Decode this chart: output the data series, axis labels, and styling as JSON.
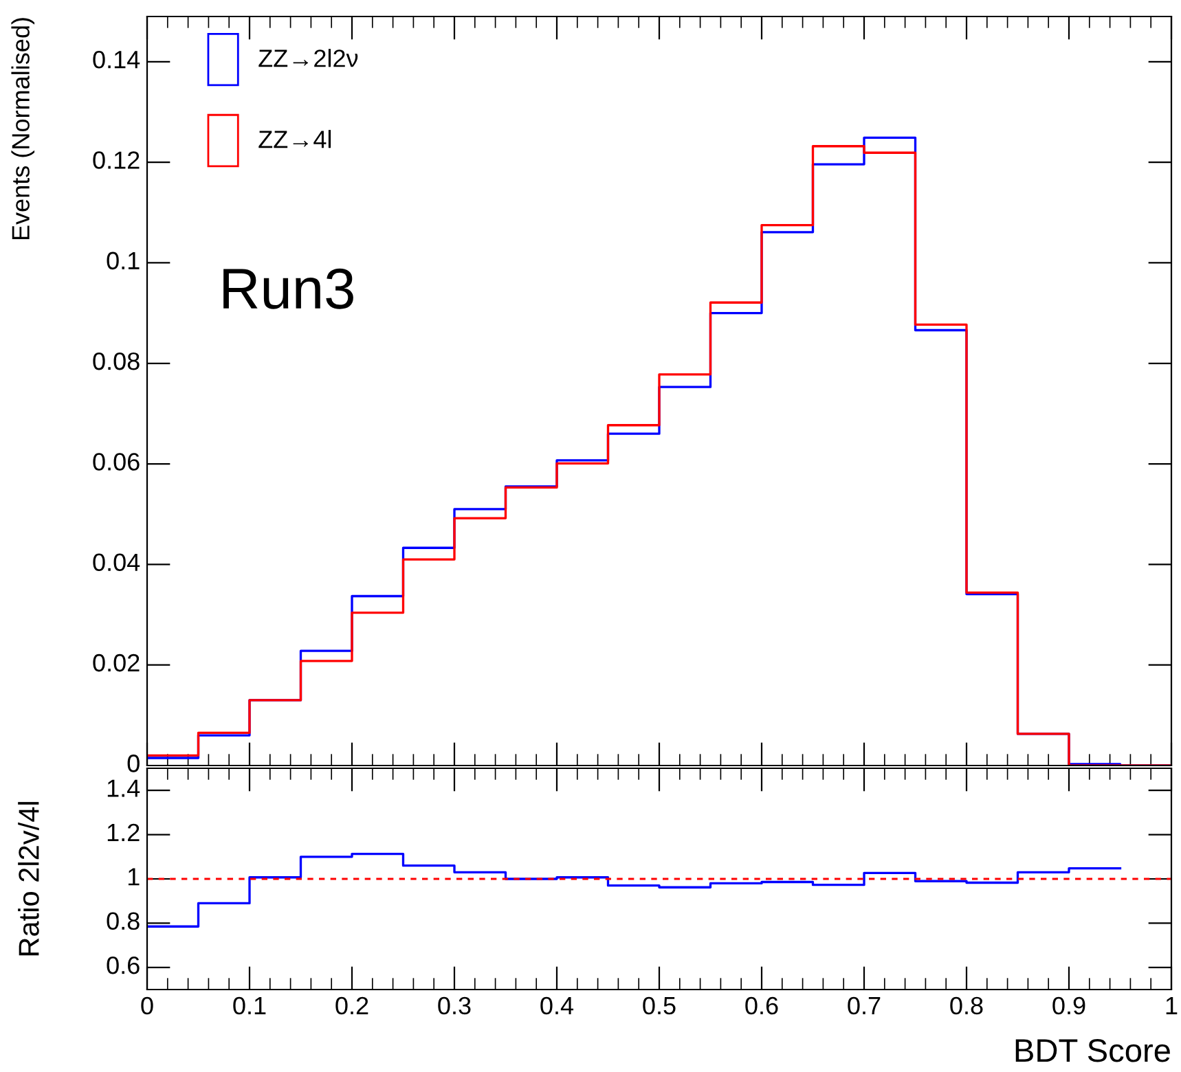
{
  "chart_data": [
    {
      "type": "histogram",
      "ylabel": "Events (Normalised)",
      "bins": [
        0,
        0.05,
        0.1,
        0.15,
        0.2,
        0.25,
        0.3,
        0.35,
        0.4,
        0.45,
        0.5,
        0.55,
        0.6,
        0.65,
        0.7,
        0.75,
        0.8,
        0.85,
        0.9,
        0.95,
        1
      ],
      "series": [
        {
          "name": "ZZ→2l2ν",
          "color": "#0000ff",
          "values": [
            0.0015,
            0.006,
            0.013,
            0.0228,
            0.0337,
            0.0433,
            0.051,
            0.0555,
            0.0607,
            0.066,
            0.0753,
            0.09,
            0.1061,
            0.1196,
            0.1249,
            0.0866,
            0.0341,
            0.0063,
            0.0003,
            0
          ]
        },
        {
          "name": "ZZ→4l",
          "color": "#ff0000",
          "values": [
            0.002,
            0.0065,
            0.013,
            0.0208,
            0.0304,
            0.041,
            0.0492,
            0.0553,
            0.0601,
            0.0677,
            0.0778,
            0.0921,
            0.1075,
            0.1232,
            0.1219,
            0.0877,
            0.0344,
            0.0063,
            0,
            0
          ]
        }
      ],
      "xlim": [
        0,
        1
      ],
      "ylim": [
        0,
        0.149
      ],
      "xticks": [
        0,
        0.1,
        0.2,
        0.3,
        0.4,
        0.5,
        0.6,
        0.7,
        0.8,
        0.9,
        1
      ],
      "yticks": [
        0,
        0.02,
        0.04,
        0.06,
        0.08,
        0.1,
        0.12,
        0.14
      ],
      "tick_labels": "y",
      "legend": "top left",
      "annotations": [
        "Run3"
      ]
    },
    {
      "type": "histogram",
      "xlabel": "BDT Score",
      "ylabel": "Ratio 2l2v/4l",
      "bins": [
        0,
        0.05,
        0.1,
        0.15,
        0.2,
        0.25,
        0.3,
        0.35,
        0.4,
        0.45,
        0.5,
        0.55,
        0.6,
        0.65,
        0.7,
        0.75,
        0.8,
        0.85,
        0.9,
        0.95
      ],
      "series": [
        {
          "color": "#0000ff",
          "values": [
            0.785,
            0.89,
            1.007,
            1.1,
            1.113,
            1.06,
            1.03,
            1.0,
            1.007,
            0.97,
            0.962,
            0.98,
            0.986,
            0.973,
            1.027,
            0.99,
            0.983,
            1.03,
            1.048
          ]
        }
      ],
      "xlim": [
        0,
        1
      ],
      "ylim": [
        0.5,
        1.5
      ],
      "xticks": [
        0,
        0.1,
        0.2,
        0.3,
        0.4,
        0.5,
        0.6,
        0.7,
        0.8,
        0.9,
        1
      ],
      "yticks": [
        0.6,
        0.8,
        1,
        1.2,
        1.4
      ],
      "ref_lines": [
        {
          "axis": "y",
          "value": 1,
          "color": "#ff0000",
          "line_style": "dashed"
        }
      ]
    }
  ]
}
